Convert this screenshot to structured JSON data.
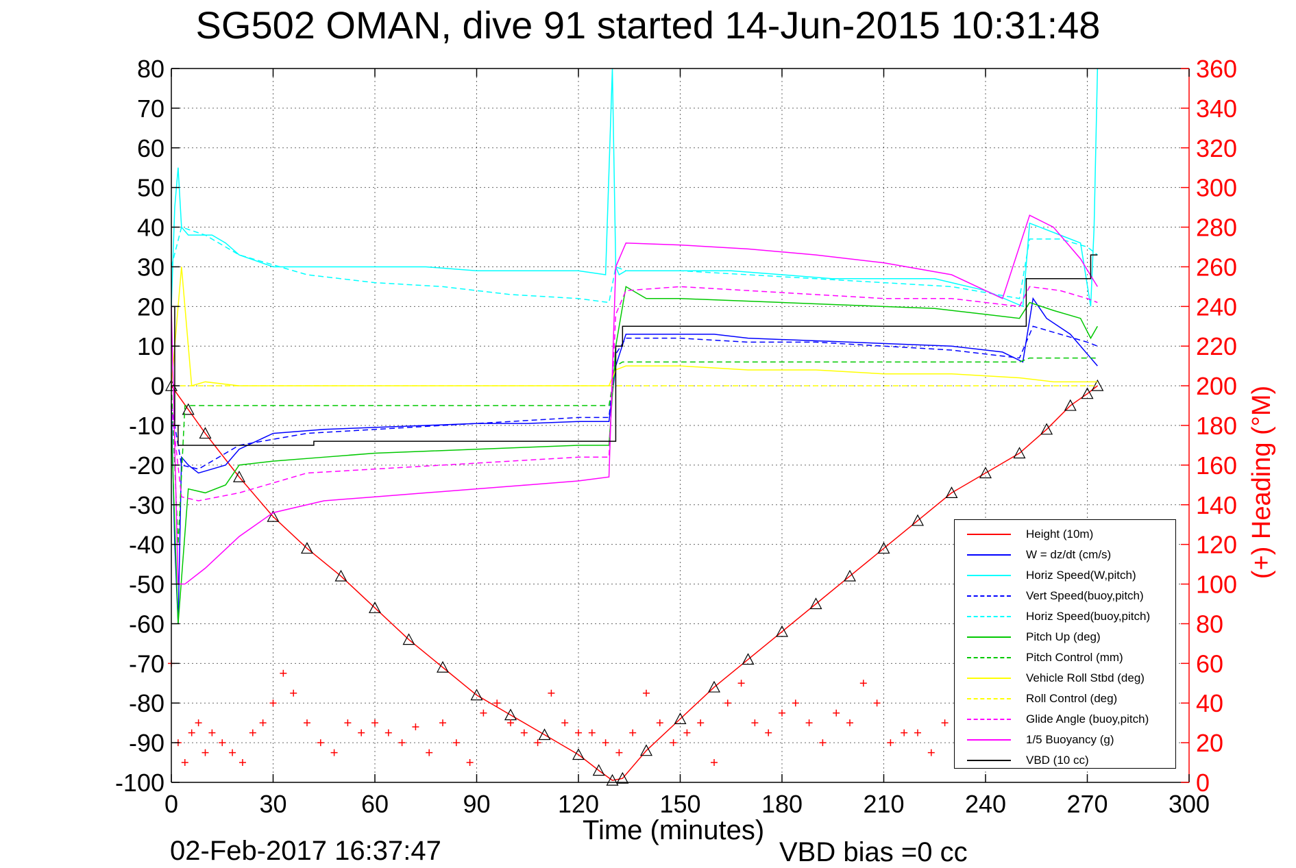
{
  "title": "SG502 OMAN, dive 91 started 14-Jun-2015 10:31:48",
  "timestamp": "02-Feb-2017 16:37:47",
  "vbd_bias": "VBD bias =0 cc",
  "chart_data": {
    "type": "line",
    "xlabel": "Time (minutes)",
    "ylabel": "",
    "y2label": "(+) Heading (°M)",
    "xlim": [
      0,
      300
    ],
    "ylim": [
      -100,
      80
    ],
    "y2lim": [
      0,
      360
    ],
    "xticks": [
      0,
      30,
      60,
      90,
      120,
      150,
      180,
      210,
      240,
      270,
      300
    ],
    "yticks": [
      -100,
      -90,
      -80,
      -70,
      -60,
      -50,
      -40,
      -30,
      -20,
      -10,
      0,
      10,
      20,
      30,
      40,
      50,
      60,
      70,
      80
    ],
    "y2ticks": [
      0,
      20,
      40,
      60,
      80,
      100,
      120,
      140,
      160,
      180,
      200,
      220,
      240,
      260,
      280,
      300,
      320,
      340,
      360
    ],
    "grid": true,
    "legend_position": "bottom-right",
    "series": [
      {
        "name": "Height (10m)",
        "color": "#ff0000",
        "style": "solid",
        "marker": "triangle",
        "x": [
          0,
          5,
          10,
          20,
          30,
          40,
          50,
          60,
          70,
          80,
          90,
          100,
          110,
          120,
          126,
          130,
          133,
          140,
          150,
          160,
          170,
          180,
          190,
          200,
          210,
          220,
          230,
          240,
          250,
          258,
          265,
          270,
          273
        ],
        "y": [
          0,
          -6,
          -12,
          -23,
          -33,
          -41,
          -48,
          -56,
          -64,
          -71,
          -78,
          -83,
          -88,
          -93,
          -97,
          -99.5,
          -99,
          -92,
          -84,
          -76,
          -69,
          -62,
          -55,
          -48,
          -41,
          -34,
          -27,
          -22,
          -17,
          -11,
          -5,
          -2,
          0
        ]
      },
      {
        "name": "W = dz/dt (cm/s)",
        "color": "#0000ff",
        "style": "solid",
        "x": [
          0,
          1,
          2,
          3,
          5,
          8,
          12,
          16,
          20,
          30,
          45,
          60,
          75,
          90,
          105,
          120,
          129,
          131,
          134,
          140,
          150,
          160,
          170,
          185,
          200,
          215,
          230,
          245,
          251,
          254,
          258,
          265,
          270,
          273
        ],
        "y": [
          -5,
          -40,
          -60,
          -18,
          -20,
          -22,
          -21,
          -20,
          -16,
          -12,
          -11,
          -10.5,
          -10,
          -9.5,
          -9.5,
          -9,
          -9,
          5,
          13,
          13,
          13,
          13,
          12,
          11.5,
          11,
          10.5,
          10,
          8.5,
          6,
          22,
          17,
          13,
          8,
          5
        ]
      },
      {
        "name": "Horiz Speed(W,pitch)",
        "color": "#00ffff",
        "style": "solid",
        "x": [
          0,
          1,
          2,
          3,
          5,
          8,
          12,
          16,
          20,
          30,
          45,
          60,
          75,
          90,
          105,
          120,
          128,
          130,
          131,
          132,
          134,
          140,
          150,
          165,
          180,
          195,
          210,
          225,
          240,
          251,
          253,
          256,
          262,
          268,
          271,
          272,
          273
        ],
        "y": [
          20,
          45,
          55,
          40,
          38,
          38,
          38,
          36,
          33,
          30,
          30,
          30,
          30,
          29,
          29,
          29,
          28,
          80,
          30,
          28,
          29,
          29,
          29,
          29,
          28,
          27,
          27,
          27,
          24,
          20,
          41,
          40,
          38,
          36,
          20,
          40,
          80
        ]
      },
      {
        "name": "Vert Speed(buoy,pitch)",
        "color": "#0000ff",
        "style": "dashed",
        "x": [
          0,
          3,
          8,
          20,
          40,
          60,
          80,
          100,
          120,
          129,
          131,
          134,
          150,
          170,
          190,
          210,
          230,
          250,
          254,
          262,
          270,
          273
        ],
        "y": [
          -5,
          -20,
          -21,
          -15,
          -12,
          -11,
          -10,
          -9,
          -8,
          -8,
          8,
          12,
          12,
          11,
          11,
          10,
          9,
          7,
          15,
          13,
          11,
          10
        ]
      },
      {
        "name": "Horiz Speed(buoy,pitch)",
        "color": "#00ffff",
        "style": "dashed",
        "x": [
          0,
          3,
          10,
          20,
          40,
          60,
          80,
          100,
          120,
          129,
          131,
          134,
          150,
          170,
          190,
          210,
          230,
          250,
          253,
          262,
          270,
          273
        ],
        "y": [
          30,
          40,
          38,
          33,
          28,
          26,
          25,
          23,
          22,
          21,
          30,
          29,
          29,
          28,
          27,
          26,
          25,
          22,
          37,
          37,
          35,
          33
        ]
      },
      {
        "name": "Pitch Up (deg)",
        "color": "#00c800",
        "style": "solid",
        "x": [
          0,
          2,
          5,
          10,
          16,
          20,
          30,
          45,
          60,
          75,
          90,
          105,
          120,
          129,
          131,
          134,
          140,
          150,
          165,
          180,
          195,
          210,
          225,
          240,
          250,
          253,
          260,
          268,
          271,
          273
        ],
        "y": [
          -10,
          -60,
          -26,
          -27,
          -25,
          -20,
          -19,
          -18,
          -17,
          -16.5,
          -16,
          -15.5,
          -15,
          -15,
          10,
          25,
          22,
          22,
          21.5,
          21,
          20.5,
          20,
          19.5,
          18,
          17,
          21,
          19,
          17,
          12,
          15
        ]
      },
      {
        "name": "Pitch Control (mm)",
        "color": "#00c800",
        "style": "dashed",
        "x": [
          0,
          2,
          4,
          10,
          129,
          131,
          133,
          250,
          253,
          273
        ],
        "y": [
          0,
          -40,
          -5,
          -5,
          -5,
          5,
          6,
          6,
          7,
          7
        ]
      },
      {
        "name": "Vehicle Roll Stbd (deg)",
        "color": "#ffff00",
        "style": "solid",
        "x": [
          0,
          3,
          6,
          10,
          20,
          30,
          40,
          60,
          80,
          100,
          120,
          129,
          131,
          134,
          150,
          170,
          190,
          210,
          230,
          250,
          260,
          270,
          273
        ],
        "y": [
          0,
          30,
          0,
          1,
          0,
          0,
          0,
          0,
          0,
          0,
          0,
          0,
          4,
          5,
          5,
          4,
          4,
          3,
          3,
          2,
          1,
          1,
          1
        ]
      },
      {
        "name": "Roll Control (deg)",
        "color": "#ffff00",
        "style": "dashed",
        "x": [
          0,
          5,
          20,
          60,
          100,
          129,
          131,
          170,
          210,
          250,
          273
        ],
        "y": [
          0,
          0,
          0,
          0,
          0,
          0,
          0,
          0,
          0,
          0,
          0
        ]
      },
      {
        "name": "Glide Angle (buoy,pitch)",
        "color": "#ff00ff",
        "style": "dashed",
        "x": [
          0,
          3,
          8,
          20,
          40,
          60,
          80,
          100,
          120,
          129,
          131,
          134,
          150,
          170,
          190,
          210,
          230,
          250,
          253,
          262,
          270,
          273
        ],
        "y": [
          -5,
          -28,
          -29,
          -27,
          -22,
          -21,
          -20,
          -19,
          -18,
          -18,
          18,
          24,
          25,
          24,
          23,
          22,
          22,
          20,
          25,
          24,
          22,
          21
        ]
      },
      {
        "name": "1/5 Buoyancy (g)",
        "color": "#ff00ff",
        "style": "solid",
        "x": [
          0,
          2,
          4,
          10,
          20,
          30,
          45,
          60,
          75,
          90,
          105,
          120,
          129,
          131,
          134,
          150,
          170,
          190,
          210,
          230,
          245,
          253,
          260,
          268,
          273
        ],
        "y": [
          20,
          -50,
          -50,
          -46,
          -38,
          -32,
          -29,
          -28,
          -27,
          -26,
          -25,
          -24,
          -23,
          30,
          36,
          35.5,
          34.5,
          33,
          31,
          28,
          22,
          43,
          40,
          32,
          25
        ]
      },
      {
        "name": "VBD (10 cc)",
        "color": "#000000",
        "style": "solid",
        "step": true,
        "x": [
          0,
          1,
          2,
          5,
          40,
          42,
          129,
          131,
          133,
          250,
          252,
          270,
          271,
          273
        ],
        "y": [
          20,
          -10,
          -15,
          -15,
          -15,
          -14,
          -14,
          10,
          15,
          15,
          27,
          27,
          33,
          33
        ]
      },
      {
        "name": "Heading",
        "color": "#ff0000",
        "style": "plus",
        "axis": "y2",
        "x": [
          0,
          2,
          4,
          6,
          8,
          10,
          12,
          15,
          18,
          21,
          24,
          27,
          30,
          33,
          36,
          40,
          44,
          48,
          52,
          56,
          60,
          64,
          68,
          72,
          76,
          80,
          84,
          88,
          92,
          96,
          100,
          104,
          108,
          112,
          116,
          120,
          124,
          128,
          132,
          136,
          140,
          144,
          148,
          152,
          156,
          160,
          164,
          168,
          172,
          176,
          180,
          184,
          188,
          192,
          196,
          200,
          204,
          208,
          212,
          216,
          220,
          224,
          228,
          232,
          236,
          240,
          244,
          248,
          252,
          256,
          260,
          264,
          268,
          272
        ],
        "y": [
          60,
          20,
          10,
          25,
          30,
          15,
          25,
          20,
          15,
          10,
          25,
          30,
          40,
          55,
          45,
          30,
          20,
          15,
          30,
          25,
          30,
          25,
          20,
          28,
          15,
          30,
          20,
          10,
          35,
          40,
          30,
          25,
          20,
          45,
          30,
          25,
          25,
          20,
          15,
          25,
          45,
          30,
          20,
          25,
          30,
          10,
          40,
          50,
          30,
          25,
          35,
          40,
          30,
          20,
          35,
          30,
          50,
          40,
          20,
          25,
          25,
          15,
          30,
          20,
          35,
          25,
          20,
          30,
          35,
          40,
          30,
          25,
          20,
          30
        ]
      }
    ]
  }
}
